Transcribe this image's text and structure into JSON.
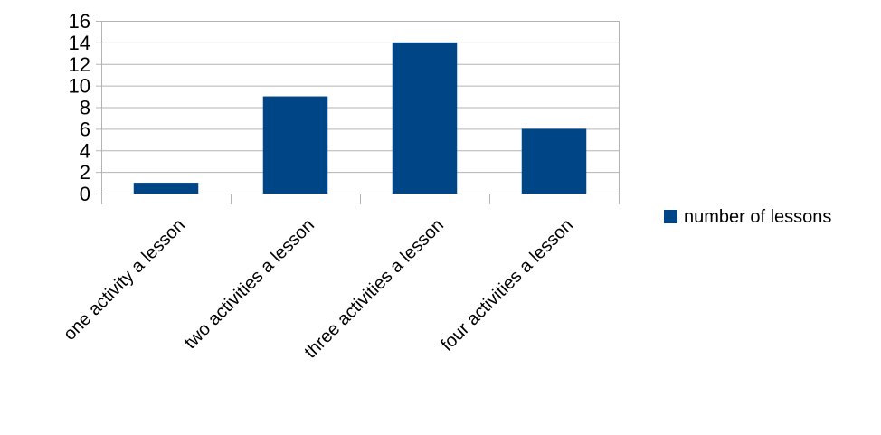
{
  "chart_data": {
    "type": "bar",
    "categories": [
      "one activity a lesson",
      "two activities a lesson",
      "three activities a lesson",
      "four activities a lesson"
    ],
    "series": [
      {
        "name": "number of lessons",
        "values": [
          1,
          9,
          14,
          6
        ],
        "color": "#004586"
      }
    ],
    "title": "",
    "xlabel": "",
    "ylabel": "",
    "ylim": [
      0,
      16
    ],
    "yticks": [
      0,
      2,
      4,
      6,
      8,
      10,
      12,
      14,
      16
    ],
    "grid": true,
    "gridColor": "#b3b3b3",
    "legend": "right"
  }
}
